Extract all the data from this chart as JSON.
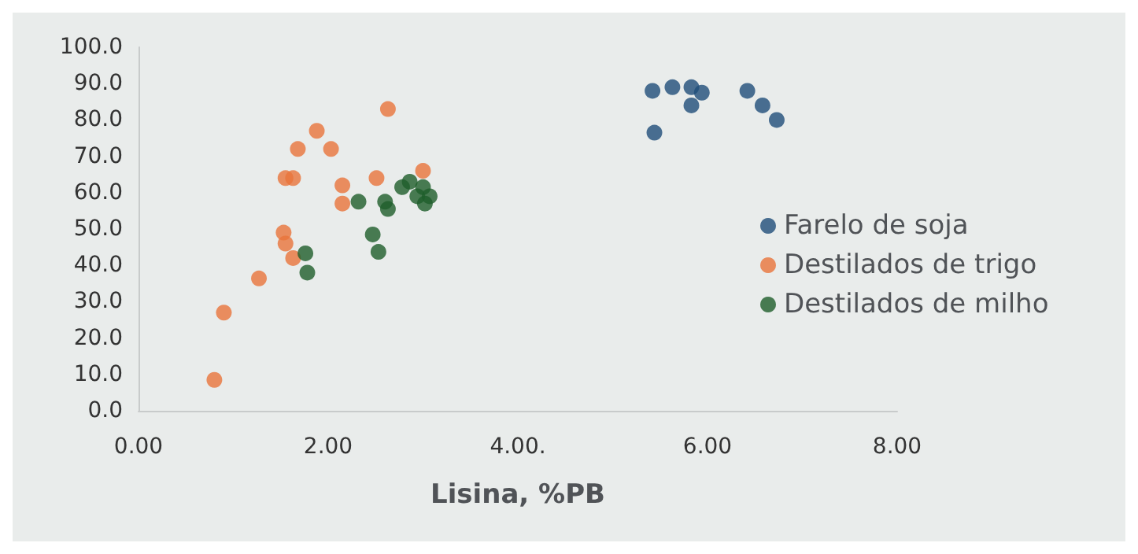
{
  "chart_data": {
    "type": "scatter",
    "xlabel": "Lisina, %PB",
    "xlim": [
      0,
      8
    ],
    "ylim": [
      0,
      100
    ],
    "xticks": [
      {
        "value": 0,
        "label": "0.00"
      },
      {
        "value": 2,
        "label": "2.00"
      },
      {
        "value": 4,
        "label": "4.00."
      },
      {
        "value": 6,
        "label": "6.00"
      },
      {
        "value": 8,
        "label": "8.00"
      }
    ],
    "yticks": [
      {
        "value": 0,
        "label": "0.0"
      },
      {
        "value": 10,
        "label": "10.0"
      },
      {
        "value": 20,
        "label": "20.0"
      },
      {
        "value": 30,
        "label": "30.0"
      },
      {
        "value": 40,
        "label": "40.0"
      },
      {
        "value": 50,
        "label": "50.0"
      },
      {
        "value": 60,
        "label": "60.0"
      },
      {
        "value": 70,
        "label": "70.0"
      },
      {
        "value": 80,
        "label": "80.0"
      },
      {
        "value": 90,
        "label": "90.0"
      },
      {
        "value": 100,
        "label": "100.0"
      }
    ],
    "grid": false,
    "legend": "right",
    "marker": "circle",
    "series": [
      {
        "name": "Farelo de soja",
        "color": "#1f4e79",
        "x": [
          5.42,
          5.63,
          5.83,
          5.94,
          5.83,
          6.42,
          6.58,
          6.73,
          5.44
        ],
        "values": [
          88,
          89,
          89,
          87.5,
          84,
          88,
          84,
          80,
          76.5
        ]
      },
      {
        "name": "Destilados de trigo",
        "color": "#e8743b",
        "x": [
          0.8,
          0.9,
          1.27,
          1.53,
          1.55,
          1.63,
          1.55,
          1.63,
          1.68,
          1.88,
          2.03,
          2.15,
          2.15,
          2.51,
          2.63,
          3.0
        ],
        "values": [
          8.5,
          27,
          36.4,
          49,
          46,
          42,
          64,
          64,
          72,
          77,
          72,
          62,
          57,
          64,
          83,
          66
        ]
      },
      {
        "name": "Destilados de milho",
        "color": "#1e5e2a",
        "x": [
          1.76,
          1.78,
          2.32,
          2.47,
          2.53,
          2.6,
          2.63,
          2.78,
          2.86,
          3.0,
          2.94,
          3.07,
          3.02
        ],
        "values": [
          43.3,
          38,
          57.5,
          48.5,
          43.7,
          57.5,
          55.5,
          61.5,
          63,
          61.5,
          59,
          59,
          57
        ]
      }
    ]
  }
}
